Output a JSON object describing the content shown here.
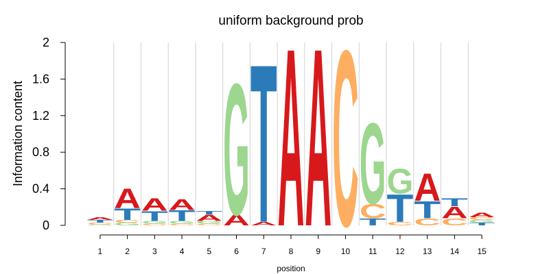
{
  "chart_data": {
    "type": "sequence-logo",
    "title": "uniform background prob",
    "xlabel": "position",
    "ylabel": "Information content",
    "ylim": [
      0,
      2
    ],
    "yticks": [
      "0",
      "0.4",
      "0.8",
      "1.2",
      "1.6",
      "2"
    ],
    "positions": [
      "1",
      "2",
      "3",
      "4",
      "5",
      "6",
      "7",
      "8",
      "9",
      "10",
      "11",
      "12",
      "13",
      "14",
      "15"
    ],
    "grid": true,
    "colors": {
      "A": "#d7191c",
      "C": "#fdae61",
      "G": "#9cd68f",
      "T": "#2b7bba"
    },
    "stacks": [
      [
        {
          "letter": "G",
          "value": 0.01
        },
        {
          "letter": "C",
          "value": 0.02
        },
        {
          "letter": "T",
          "value": 0.03
        },
        {
          "letter": "A",
          "value": 0.03
        }
      ],
      [
        {
          "letter": "G",
          "value": 0.03
        },
        {
          "letter": "C",
          "value": 0.03
        },
        {
          "letter": "T",
          "value": 0.13
        },
        {
          "letter": "A",
          "value": 0.22
        }
      ],
      [
        {
          "letter": "C",
          "value": 0.02
        },
        {
          "letter": "G",
          "value": 0.03
        },
        {
          "letter": "T",
          "value": 0.11
        },
        {
          "letter": "A",
          "value": 0.14
        }
      ],
      [
        {
          "letter": "C",
          "value": 0.02
        },
        {
          "letter": "G",
          "value": 0.03
        },
        {
          "letter": "T",
          "value": 0.12
        },
        {
          "letter": "A",
          "value": 0.12
        }
      ],
      [
        {
          "letter": "C",
          "value": 0.02
        },
        {
          "letter": "G",
          "value": 0.03
        },
        {
          "letter": "A",
          "value": 0.07
        },
        {
          "letter": "T",
          "value": 0.04
        }
      ],
      [
        {
          "letter": "A",
          "value": 0.12
        },
        {
          "letter": "G",
          "value": 1.48
        }
      ],
      [
        {
          "letter": "A",
          "value": 0.04
        },
        {
          "letter": "T",
          "value": 1.78
        }
      ],
      [
        {
          "letter": "A",
          "value": 2.0
        }
      ],
      [
        {
          "letter": "A",
          "value": 2.0
        }
      ],
      [
        {
          "letter": "C",
          "value": 1.98
        }
      ],
      [
        {
          "letter": "T",
          "value": 0.08
        },
        {
          "letter": "C",
          "value": 0.16
        },
        {
          "letter": "G",
          "value": 0.91
        }
      ],
      [
        {
          "letter": "C",
          "value": 0.04
        },
        {
          "letter": "T",
          "value": 0.31
        },
        {
          "letter": "G",
          "value": 0.28
        }
      ],
      [
        {
          "letter": "C",
          "value": 0.08
        },
        {
          "letter": "T",
          "value": 0.19
        },
        {
          "letter": "A",
          "value": 0.31
        }
      ],
      [
        {
          "letter": "C",
          "value": 0.08
        },
        {
          "letter": "A",
          "value": 0.13
        },
        {
          "letter": "T",
          "value": 0.09
        }
      ],
      [
        {
          "letter": "T",
          "value": 0.03
        },
        {
          "letter": "G",
          "value": 0.03
        },
        {
          "letter": "C",
          "value": 0.03
        },
        {
          "letter": "A",
          "value": 0.05
        }
      ]
    ]
  }
}
